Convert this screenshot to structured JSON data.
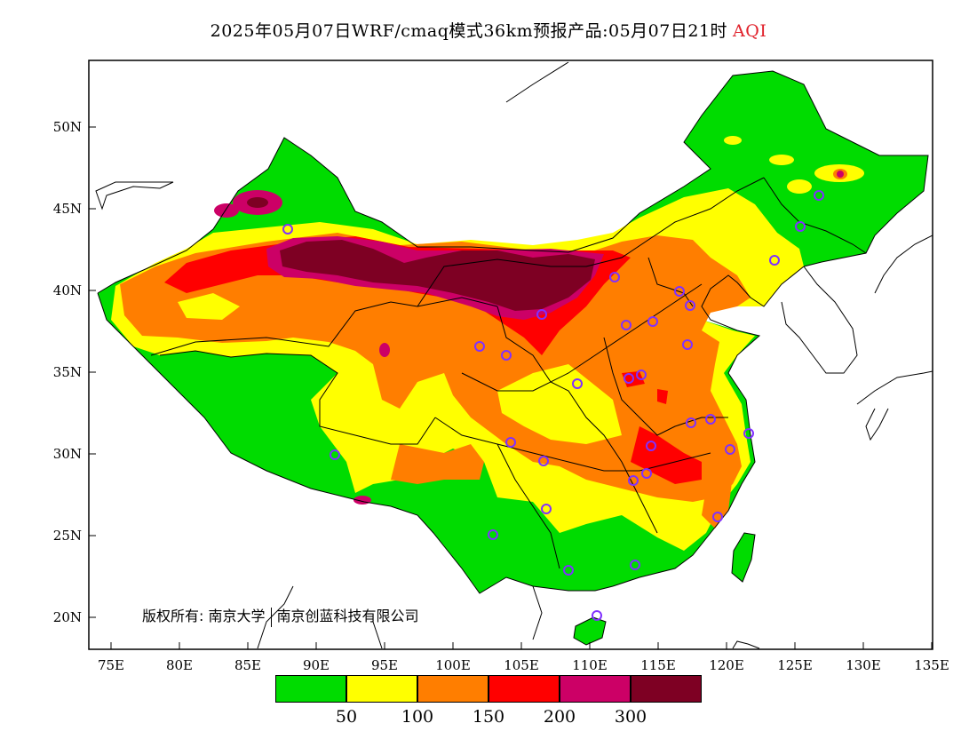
{
  "title": {
    "main": "2025年05月07日WRF/cmaq模式36km预报产品:05月07日21时",
    "variable": "AQI",
    "variable_color": "#e0202a"
  },
  "copyright": {
    "owner_prefix": "版权所有:",
    "owner1": "南京大学",
    "owner2": "南京创蓝科技有限公司"
  },
  "axes": {
    "x_ticks": [
      "75E",
      "80E",
      "85E",
      "90E",
      "95E",
      "100E",
      "105E",
      "110E",
      "115E",
      "120E",
      "125E",
      "130E",
      "135E"
    ],
    "y_ticks": [
      "50N",
      "45N",
      "40N",
      "35N",
      "30N",
      "25N",
      "20N"
    ],
    "lon_range": [
      73,
      135
    ],
    "lat_range": [
      18,
      54
    ]
  },
  "legend": {
    "colors": [
      "#00dc00",
      "#ffff00",
      "#ff7e00",
      "#ff0000",
      "#cc0066",
      "#7e0023"
    ],
    "thresholds": [
      "50",
      "100",
      "150",
      "200",
      "300"
    ]
  },
  "colors": {
    "good": "#00dc00",
    "moderate": "#ffff00",
    "usg": "#ff7e00",
    "unhealthy": "#ff0000",
    "very_unhealthy": "#cc0066",
    "hazardous": "#7e0023",
    "station_marker": "#8030ff"
  }
}
